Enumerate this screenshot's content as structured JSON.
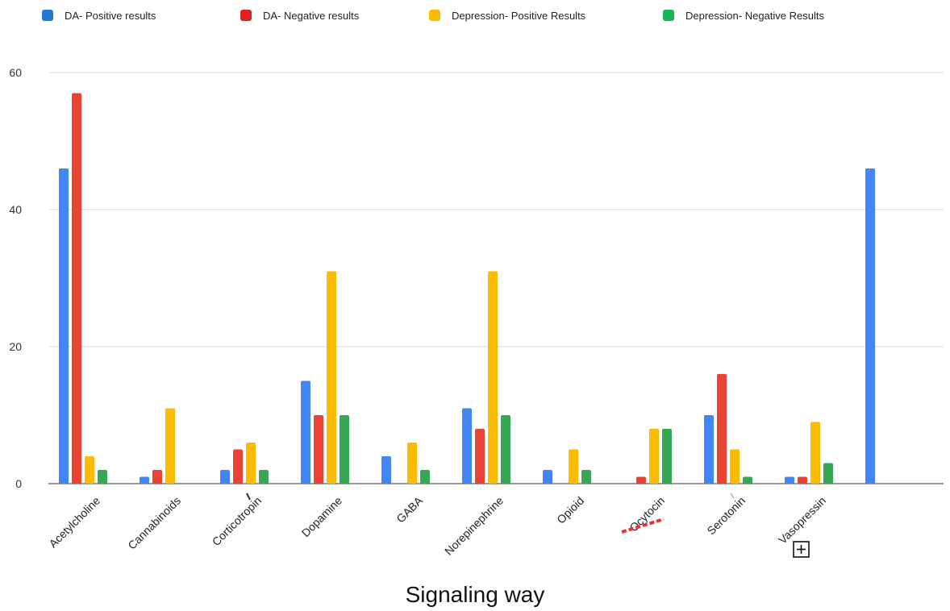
{
  "colors": {
    "grid": "#d9d9d9",
    "axis": "#333333",
    "spellcheck": "#e8312f"
  },
  "chart_data": {
    "type": "bar",
    "title": "",
    "xlabel": "Signaling way",
    "ylabel": "",
    "ylim": [
      0,
      60
    ],
    "yticks": [
      0,
      20,
      40,
      60
    ],
    "grid": true,
    "legend_position": "top",
    "categories": [
      "Acetylcholine",
      "Cannabinoids",
      "Corticotropin",
      "Dopamine",
      "GABA",
      "Norepinephrine",
      "Opioid",
      "Ocytocin",
      "Serotonin",
      "Vasopressin",
      ""
    ],
    "series": [
      {
        "name": "DA- Positive results",
        "color": "#4285f4",
        "values": [
          46,
          1,
          2,
          15,
          4,
          11,
          2,
          0,
          10,
          1,
          46
        ]
      },
      {
        "name": "DA- Negative results",
        "color": "#ea4335",
        "values": [
          57,
          2,
          5,
          10,
          0,
          8,
          0,
          1,
          16,
          1,
          0
        ]
      },
      {
        "name": "Depression- Positive Results",
        "color": "#fbbc04",
        "values": [
          4,
          11,
          6,
          31,
          6,
          31,
          5,
          8,
          5,
          9,
          0
        ]
      },
      {
        "name": "Depression- Negative Results",
        "color": "#34a853",
        "values": [
          2,
          0,
          2,
          10,
          2,
          10,
          2,
          8,
          1,
          3,
          0
        ]
      }
    ]
  },
  "legend_swatch_colors": [
    "#1f78d1",
    "#e02020",
    "#fbbc04",
    "#16b455"
  ],
  "spellcheck_word": "Ocytocin",
  "add_icon": "plus-square-icon"
}
